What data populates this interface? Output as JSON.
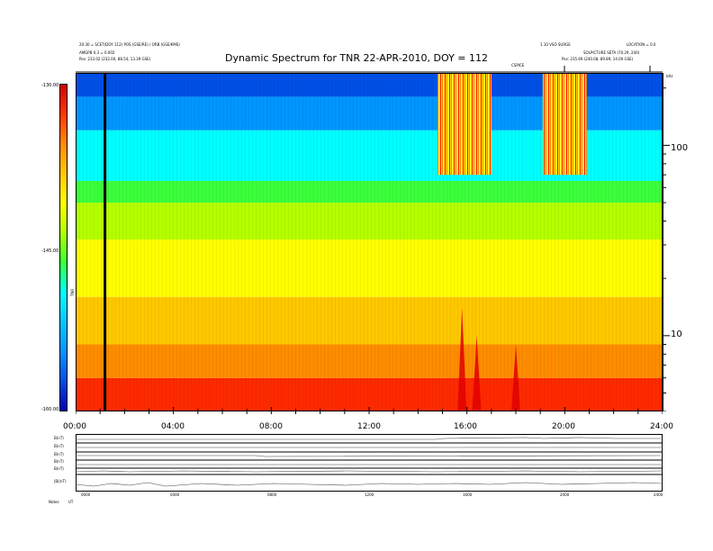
{
  "header": {
    "title": "Dynamic Spectrum for TNR 22-APR-2010, DOY = 112",
    "left_line1": "20:30 = SCET(DOY 112) POS (GSE/RE) / ORB (GSE/KMS)",
    "left_line2": "AMGPB 0.3 = 0.002",
    "left_line3": "Pos: 233.02 (232.00, 88.54, 13.39 GSE)",
    "right_line1": "1.10 VSO SURGE",
    "right_line2": "LOCATION = 0.0",
    "right_line3": "SOLPICTURE SETA (70.29, 240)",
    "right_line4": "Pos: 235.69 (240.08, 89.89, 14.00 GSE)",
    "mid_label": "CSPICE",
    "corner_label": "kHz"
  },
  "colorbar": {
    "ticks": [
      "-130.00",
      "-145.00",
      "-160.00"
    ],
    "unit_label": "TNR",
    "colors": [
      "#d40000",
      "#ff3a00",
      "#ff8c00",
      "#ffc800",
      "#ffff00",
      "#b4ff00",
      "#3cff3c",
      "#00ffff",
      "#00c8ff",
      "#0096ff",
      "#0050e6",
      "#0000b4"
    ]
  },
  "chart_data": {
    "type": "heatmap",
    "title": "Dynamic Spectrum for TNR 22-APR-2010, DOY = 112",
    "x": {
      "label": "",
      "ticks": [
        "00:00",
        "04:00",
        "08:00",
        "12:00",
        "16:00",
        "20:00",
        "24:00"
      ],
      "range_hours": [
        0,
        24
      ]
    },
    "y": {
      "label": "kHz",
      "scale": "log",
      "ticks": [
        "100",
        "10"
      ],
      "range_khz": [
        4,
        240
      ]
    },
    "colorbar": {
      "range": [
        -160,
        -130
      ],
      "ticks": [
        -130,
        -145,
        -160
      ]
    },
    "bands": [
      {
        "from_khz": 4,
        "to_khz": 6,
        "color": "#ff2a00"
      },
      {
        "from_khz": 6,
        "to_khz": 9,
        "color": "#ff8c00"
      },
      {
        "from_khz": 9,
        "to_khz": 16,
        "color": "#ffc800"
      },
      {
        "from_khz": 16,
        "to_khz": 32,
        "color": "#ffff00"
      },
      {
        "from_khz": 32,
        "to_khz": 50,
        "color": "#b4ff00"
      },
      {
        "from_khz": 50,
        "to_khz": 65,
        "color": "#3cff3c"
      },
      {
        "from_khz": 65,
        "to_khz": 120,
        "color": "#00ffff"
      },
      {
        "from_khz": 120,
        "to_khz": 180,
        "color": "#0096ff"
      },
      {
        "from_khz": 180,
        "to_khz": 240,
        "color": "#0050e6"
      }
    ],
    "bursts": [
      {
        "start_h": 14.8,
        "end_h": 17.0,
        "low_khz": 70,
        "high_khz": 240
      },
      {
        "start_h": 19.1,
        "end_h": 20.9,
        "low_khz": 70,
        "high_khz": 240
      }
    ],
    "events": [
      {
        "time_h": 15.8,
        "low_khz": 4,
        "high_khz": 14
      },
      {
        "time_h": 16.4,
        "low_khz": 4,
        "high_khz": 10
      },
      {
        "time_h": 18.0,
        "low_khz": 4,
        "high_khz": 9
      }
    ],
    "marker_line_h": 1.2
  },
  "bottom_panel": {
    "row_labels": [
      "B(nT)",
      "B(nT)",
      "B(nT)",
      "B(nT)",
      "B(nT)",
      "|B|(nT)"
    ],
    "x_ticks": [
      "0000",
      "0400",
      "0800",
      "1200",
      "1600",
      "2000",
      "2400"
    ],
    "corner_labels": [
      "Notes",
      "UT"
    ]
  }
}
